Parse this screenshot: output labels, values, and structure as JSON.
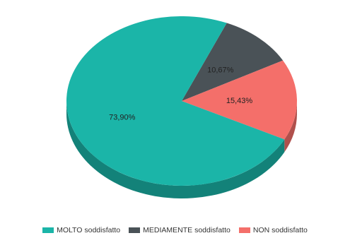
{
  "chart_data": {
    "type": "pie",
    "categories": [
      "MOLTO soddisfatto",
      "MEDIAMENTE soddisfatto",
      "NON soddisfatto"
    ],
    "values": [
      73.9,
      10.67,
      15.43
    ],
    "value_labels": [
      "73,90%",
      "10,67%",
      "15,43%"
    ],
    "colors": [
      "#1BB5A8",
      "#4A5257",
      "#F46F6A"
    ],
    "title": "",
    "legend_position": "bottom",
    "style": "3d"
  }
}
